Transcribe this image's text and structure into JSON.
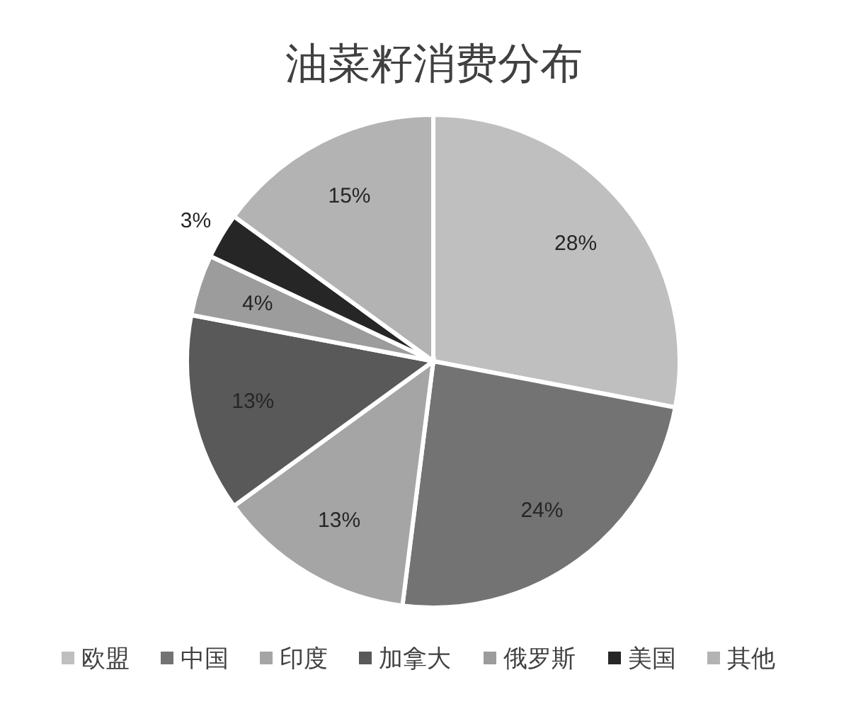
{
  "chart_data": {
    "type": "pie",
    "title": "油菜籽消费分布",
    "categories": [
      "欧盟",
      "中国",
      "印度",
      "加拿大",
      "俄罗斯",
      "美国",
      "其他"
    ],
    "values": [
      28,
      24,
      13,
      13,
      4,
      3,
      15
    ],
    "colors": [
      "#bfbfbf",
      "#737373",
      "#a5a5a5",
      "#595959",
      "#9c9c9c",
      "#262626",
      "#b3b3b3"
    ],
    "value_labels": [
      "28%",
      "24%",
      "13%",
      "13%",
      "4%",
      "3%",
      "15%"
    ],
    "legend": "bottom"
  }
}
